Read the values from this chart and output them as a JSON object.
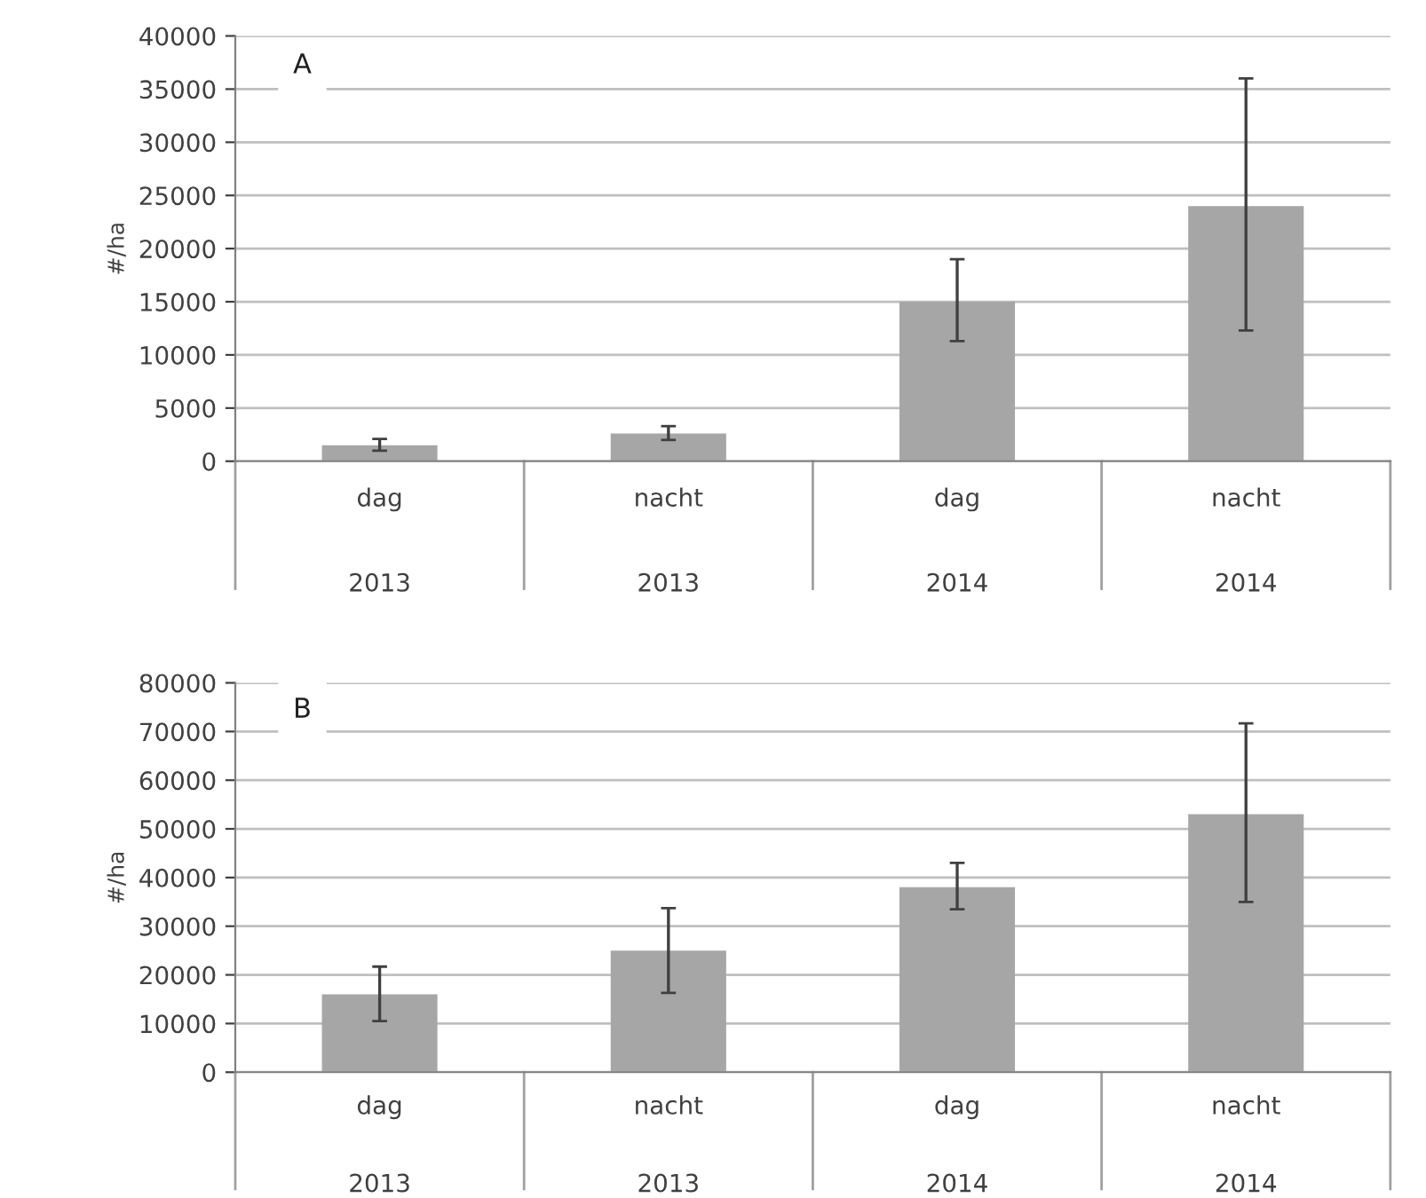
{
  "chart_data": [
    {
      "type": "bar",
      "categories": [
        "dag\n2013",
        "nacht\n2013",
        "dag\n2014",
        "nacht\n2014"
      ],
      "values": [
        1500,
        2600,
        15000,
        24000
      ],
      "color": "#a6a6a6",
      "errors": [
        [
          1000,
          2100
        ],
        [
          2000,
          3300
        ],
        [
          11300,
          19000
        ],
        [
          12300,
          36000
        ]
      ],
      "ylabel": "#/ha",
      "ylim": [
        0,
        40000
      ],
      "yticks": [
        0,
        5000,
        10000,
        15000,
        20000,
        25000,
        30000,
        35000,
        40000
      ],
      "grid": "y",
      "annotations": [
        "A"
      ]
    },
    {
      "type": "bar",
      "categories": [
        "dag\n2013",
        "nacht\n2013",
        "dag\n2014",
        "nacht\n2014"
      ],
      "values": [
        16000,
        25000,
        38000,
        53000
      ],
      "color": "#a6a6a6",
      "errors": [
        [
          10500,
          21700
        ],
        [
          16300,
          33700
        ],
        [
          33500,
          43000
        ],
        [
          35000,
          71700
        ]
      ],
      "ylabel": "#/ha",
      "ylim": [
        0,
        80000
      ],
      "yticks": [
        0,
        10000,
        20000,
        30000,
        40000,
        50000,
        60000,
        70000,
        80000
      ],
      "grid": "y",
      "annotations": [
        "B"
      ]
    }
  ]
}
